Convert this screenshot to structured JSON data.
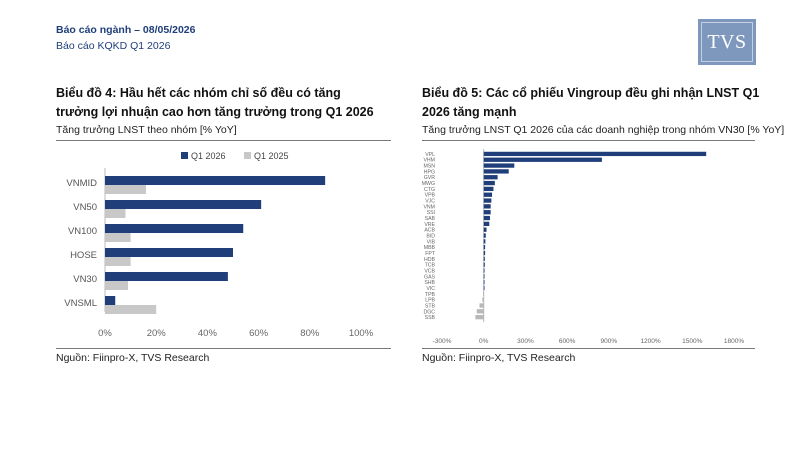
{
  "header": {
    "report_type": "Báo cáo ngành – 08/05/2026",
    "report_name": "Báo cáo KQKD Q1 2026",
    "logo": "TVS"
  },
  "left": {
    "title": "Biểu đồ 4: Hầu hết các nhóm chỉ số đều có tăng trưởng lợi nhuận cao hơn tăng trưởng trong Q1 2026",
    "subtitle": "Tăng trưởng LNST theo nhóm [% YoY]",
    "source": "Nguồn: Fiinpro-X, TVS Research"
  },
  "right": {
    "title": "Biểu đồ 5: Các cổ phiếu Vingroup đều ghi nhận LNST Q1 2026 tăng mạnh",
    "subtitle": "Tăng trưởng LNST Q1 2026 của các doanh nghiệp trong nhóm VN30 [% YoY]",
    "source": "Nguồn: Fiinpro-X, TVS Research"
  },
  "colors": {
    "navy": "#1f3e7a",
    "gray": "#c8c8c8",
    "logo_bg": "#7d97bd"
  },
  "chart_data": [
    {
      "type": "bar",
      "orientation": "horizontal",
      "categories": [
        "VNMID",
        "VN50",
        "VN100",
        "HOSE",
        "VN30",
        "VNSML"
      ],
      "series": [
        {
          "name": "Q1 2026",
          "color": "#1f3e7a",
          "values": [
            86,
            61,
            54,
            50,
            48,
            4
          ]
        },
        {
          "name": "Q1 2025",
          "color": "#c8c8c8",
          "values": [
            16,
            8,
            10,
            10,
            9,
            20
          ]
        }
      ],
      "xlim": [
        0,
        100
      ],
      "xticks": [
        0,
        20,
        40,
        60,
        80,
        100
      ],
      "tick_labels": [
        "0%",
        "20%",
        "40%",
        "60%",
        "80%",
        "100%"
      ],
      "legend": "top"
    },
    {
      "type": "bar",
      "orientation": "horizontal",
      "categories": [
        "VPL",
        "VHM",
        "MSN",
        "HPG",
        "GVR",
        "MWG",
        "CTG",
        "VPB",
        "VJC",
        "VNM",
        "SSI",
        "SAB",
        "VRE",
        "ACB",
        "BID",
        "VIB",
        "MBB",
        "FPT",
        "HDB",
        "TCB",
        "VCB",
        "GAS",
        "SHB",
        "VIC",
        "TPB",
        "LPB",
        "STB",
        "DGC",
        "SSB"
      ],
      "series": [
        {
          "name": "Q1 2026",
          "color": "#1f3e7a",
          "values": [
            1600,
            850,
            220,
            180,
            100,
            80,
            70,
            60,
            55,
            50,
            50,
            45,
            40,
            20,
            15,
            12,
            10,
            10,
            8,
            8,
            5,
            5,
            5,
            5,
            -5,
            -10,
            -30,
            -50,
            -60
          ]
        }
      ],
      "xlim": [
        -300,
        1800
      ],
      "xticks": [
        -300,
        0,
        300,
        600,
        900,
        1200,
        1500,
        1800
      ],
      "tick_labels": [
        "-300%",
        "0%",
        "300%",
        "600%",
        "900%",
        "1200%",
        "1500%",
        "1800%"
      ]
    }
  ]
}
